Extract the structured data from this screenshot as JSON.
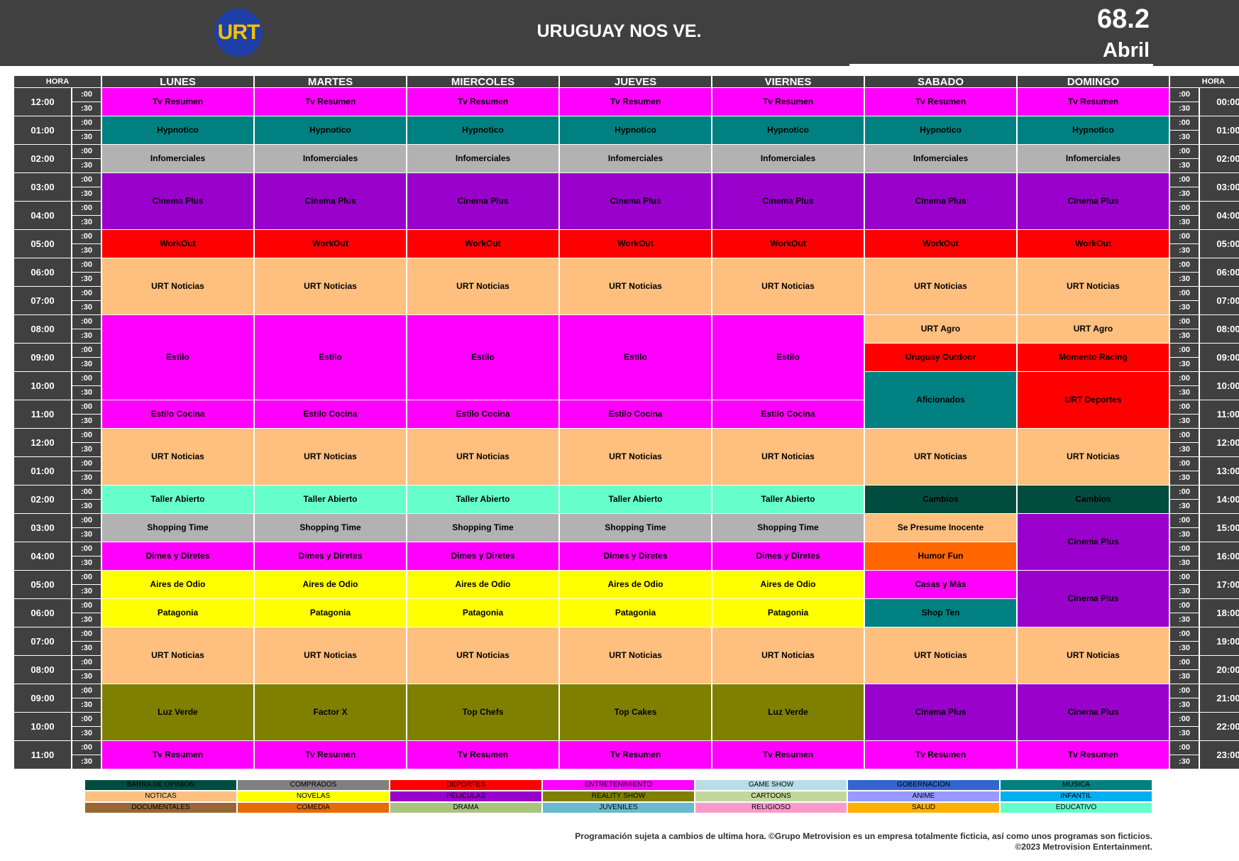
{
  "header": {
    "logo_text": "URT",
    "title": "URUGUAY NOS VE.",
    "channel": "68.2",
    "month": "Abril"
  },
  "colors": {
    "ent": "#ff00ff",
    "mus": "#008080",
    "comp": "#b2b2b2",
    "pel": "#9900cc",
    "dep": "#ff0000",
    "not": "#ffbf7f",
    "edu": "#66ffcc",
    "bar": "#004d40",
    "nov": "#ffff00",
    "real": "#808000",
    "com": "#ff6600"
  },
  "schedule": {
    "hora_label": "HORA",
    "days": [
      "LUNES",
      "MARTES",
      "MIERCOLES",
      "JUEVES",
      "VIERNES",
      "SABADO",
      "DOMINGO"
    ],
    "left_hours": [
      "12:00",
      "01:00",
      "02:00",
      "03:00",
      "04:00",
      "05:00",
      "06:00",
      "07:00",
      "08:00",
      "09:00",
      "10:00",
      "11:00",
      "12:00",
      "01:00",
      "02:00",
      "03:00",
      "04:00",
      "05:00",
      "06:00",
      "07:00",
      "08:00",
      "09:00",
      "10:00",
      "11:00"
    ],
    "right_hours": [
      "00:00",
      "01:00",
      "02:00",
      "03:00",
      "04:00",
      "05:00",
      "06:00",
      "07:00",
      "08:00",
      "09:00",
      "10:00",
      "11:00",
      "12:00",
      "13:00",
      "14:00",
      "15:00",
      "16:00",
      "17:00",
      "18:00",
      "19:00",
      "20:00",
      "21:00",
      "22:00",
      "23:00"
    ],
    "half_labels": [
      ":00",
      ":30"
    ],
    "columns": [
      [
        [
          "Tv Resumen",
          2,
          "ent"
        ],
        [
          "Hypnotico",
          2,
          "mus"
        ],
        [
          "Infomerciales",
          2,
          "comp"
        ],
        [
          "Cinema Plus",
          4,
          "pel"
        ],
        [
          "WorkOut",
          2,
          "dep"
        ],
        [
          "URT Noticias",
          4,
          "not"
        ],
        [
          "Estilo",
          6,
          "ent"
        ],
        [
          "Estilo Cocina",
          2,
          "ent"
        ],
        [
          "URT Noticias",
          4,
          "not"
        ],
        [
          "Taller Abierto",
          2,
          "edu"
        ],
        [
          "Shopping Time",
          2,
          "comp"
        ],
        [
          "Dimes y Diretes",
          2,
          "ent"
        ],
        [
          "Aires de Odio",
          2,
          "nov"
        ],
        [
          "Patagonia",
          2,
          "nov"
        ],
        [
          "URT Noticias",
          4,
          "not"
        ],
        [
          "Luz Verde",
          4,
          "real"
        ],
        [
          "Tv Resumen",
          2,
          "ent"
        ]
      ],
      [
        [
          "Tv Resumen",
          2,
          "ent"
        ],
        [
          "Hypnotico",
          2,
          "mus"
        ],
        [
          "Infomerciales",
          2,
          "comp"
        ],
        [
          "Cinema Plus",
          4,
          "pel"
        ],
        [
          "WorkOut",
          2,
          "dep"
        ],
        [
          "URT Noticias",
          4,
          "not"
        ],
        [
          "Estilo",
          6,
          "ent"
        ],
        [
          "Estilo Cocina",
          2,
          "ent"
        ],
        [
          "URT Noticias",
          4,
          "not"
        ],
        [
          "Taller Abierto",
          2,
          "edu"
        ],
        [
          "Shopping Time",
          2,
          "comp"
        ],
        [
          "Dimes y Diretes",
          2,
          "ent"
        ],
        [
          "Aires de Odio",
          2,
          "nov"
        ],
        [
          "Patagonia",
          2,
          "nov"
        ],
        [
          "URT Noticias",
          4,
          "not"
        ],
        [
          "Factor X",
          4,
          "real"
        ],
        [
          "Tv Resumen",
          2,
          "ent"
        ]
      ],
      [
        [
          "Tv Resumen",
          2,
          "ent"
        ],
        [
          "Hypnotico",
          2,
          "mus"
        ],
        [
          "Infomerciales",
          2,
          "comp"
        ],
        [
          "Cinema Plus",
          4,
          "pel"
        ],
        [
          "WorkOut",
          2,
          "dep"
        ],
        [
          "URT Noticias",
          4,
          "not"
        ],
        [
          "Estilo",
          6,
          "ent"
        ],
        [
          "Estilo Cocina",
          2,
          "ent"
        ],
        [
          "URT Noticias",
          4,
          "not"
        ],
        [
          "Taller Abierto",
          2,
          "edu"
        ],
        [
          "Shopping Time",
          2,
          "comp"
        ],
        [
          "Dimes y Diretes",
          2,
          "ent"
        ],
        [
          "Aires de Odio",
          2,
          "nov"
        ],
        [
          "Patagonia",
          2,
          "nov"
        ],
        [
          "URT Noticias",
          4,
          "not"
        ],
        [
          "Top Chefs",
          4,
          "real"
        ],
        [
          "Tv Resumen",
          2,
          "ent"
        ]
      ],
      [
        [
          "Tv Resumen",
          2,
          "ent"
        ],
        [
          "Hypnotico",
          2,
          "mus"
        ],
        [
          "Infomerciales",
          2,
          "comp"
        ],
        [
          "Cinema Plus",
          4,
          "pel"
        ],
        [
          "WorkOut",
          2,
          "dep"
        ],
        [
          "URT Noticias",
          4,
          "not"
        ],
        [
          "Estilo",
          6,
          "ent"
        ],
        [
          "Estilo Cocina",
          2,
          "ent"
        ],
        [
          "URT Noticias",
          4,
          "not"
        ],
        [
          "Taller Abierto",
          2,
          "edu"
        ],
        [
          "Shopping Time",
          2,
          "comp"
        ],
        [
          "Dimes y Diretes",
          2,
          "ent"
        ],
        [
          "Aires de Odio",
          2,
          "nov"
        ],
        [
          "Patagonia",
          2,
          "nov"
        ],
        [
          "URT Noticias",
          4,
          "not"
        ],
        [
          "Top Cakes",
          4,
          "real"
        ],
        [
          "Tv Resumen",
          2,
          "ent"
        ]
      ],
      [
        [
          "Tv Resumen",
          2,
          "ent"
        ],
        [
          "Hypnotico",
          2,
          "mus"
        ],
        [
          "Infomerciales",
          2,
          "comp"
        ],
        [
          "Cinema Plus",
          4,
          "pel"
        ],
        [
          "WorkOut",
          2,
          "dep"
        ],
        [
          "URT Noticias",
          4,
          "not"
        ],
        [
          "Estilo",
          6,
          "ent"
        ],
        [
          "Estilo Cocina",
          2,
          "ent"
        ],
        [
          "URT Noticias",
          4,
          "not"
        ],
        [
          "Taller Abierto",
          2,
          "edu"
        ],
        [
          "Shopping Time",
          2,
          "comp"
        ],
        [
          "Dimes y Diretes",
          2,
          "ent"
        ],
        [
          "Aires de Odio",
          2,
          "nov"
        ],
        [
          "Patagonia",
          2,
          "nov"
        ],
        [
          "URT Noticias",
          4,
          "not"
        ],
        [
          "Luz Verde",
          4,
          "real"
        ],
        [
          "Tv Resumen",
          2,
          "ent"
        ]
      ],
      [
        [
          "Tv Resumen",
          2,
          "ent"
        ],
        [
          "Hypnotico",
          2,
          "mus"
        ],
        [
          "Infomerciales",
          2,
          "comp"
        ],
        [
          "Cinema Plus",
          4,
          "pel"
        ],
        [
          "WorkOut",
          2,
          "dep"
        ],
        [
          "URT Noticias",
          4,
          "not"
        ],
        [
          "URT Agro",
          2,
          "not"
        ],
        [
          "Uruguay Outdoor",
          2,
          "dep"
        ],
        [
          "Aficionados",
          4,
          "mus"
        ],
        [
          "URT Noticias",
          4,
          "not"
        ],
        [
          "Cambios",
          2,
          "bar"
        ],
        [
          "Se Presume Inocente",
          2,
          "not"
        ],
        [
          "Humor Fun",
          2,
          "com"
        ],
        [
          "Casas y Más",
          2,
          "ent"
        ],
        [
          "Shop Ten",
          2,
          "mus"
        ],
        [
          "URT Noticias",
          4,
          "not"
        ],
        [
          "Cinema Plus",
          4,
          "pel"
        ],
        [
          "Tv Resumen",
          2,
          "ent"
        ]
      ],
      [
        [
          "Tv Resumen",
          2,
          "ent"
        ],
        [
          "Hypnotico",
          2,
          "mus"
        ],
        [
          "Infomerciales",
          2,
          "comp"
        ],
        [
          "Cinema Plus",
          4,
          "pel"
        ],
        [
          "WorkOut",
          2,
          "dep"
        ],
        [
          "URT Noticias",
          4,
          "not"
        ],
        [
          "URT Agro",
          2,
          "not"
        ],
        [
          "Momento Racing",
          2,
          "dep"
        ],
        [
          "URT Deportes",
          4,
          "dep"
        ],
        [
          "URT Noticias",
          4,
          "not"
        ],
        [
          "Cambios",
          2,
          "bar"
        ],
        [
          "Cinema Plus",
          4,
          "pel"
        ],
        [
          "Cinema Plus",
          4,
          "pel"
        ],
        [
          "URT Noticias",
          4,
          "not"
        ],
        [
          "Cinema Plus",
          4,
          "pel"
        ],
        [
          "Tv Resumen",
          2,
          "ent"
        ]
      ]
    ]
  },
  "legend": [
    [
      "BARRA DE OPINION",
      "#004d40"
    ],
    [
      "COMPRADOS",
      "#7f7f7f"
    ],
    [
      "DEPORTES",
      "#ff0000"
    ],
    [
      "ENTRETENIMIENTO",
      "#ff00ff"
    ],
    [
      "GAME SHOW",
      "#b7dde8"
    ],
    [
      "GOBERNACION",
      "#3366cc"
    ],
    [
      "MUSICA",
      "#008080"
    ],
    [
      "NOTICAS",
      "#ffbf7f"
    ],
    [
      "NOVELAS",
      "#ffff00"
    ],
    [
      "PELICULAS",
      "#9900cc"
    ],
    [
      "REALITY SHOW",
      "#808000"
    ],
    [
      "CARTOONS",
      "#c4d79b"
    ],
    [
      "ANIME",
      "#9999ff"
    ],
    [
      "INFANTIL",
      "#00b0f0"
    ],
    [
      "DOCUMENTALES",
      "#996633"
    ],
    [
      "COMEDIA",
      "#e26b0a"
    ],
    [
      "DRAMA",
      "#a9c47f"
    ],
    [
      "JUVENILES",
      "#66bccc"
    ],
    [
      "RELIGIOSO",
      "#ff99cc"
    ],
    [
      "SALUD",
      "#ffb000"
    ],
    [
      "EDUCATIVO",
      "#66ffcc"
    ]
  ],
  "footer": {
    "line1": "Programación sujeta a cambios de ultima hora. ©Grupo Metrovision es un empresa totalmente ficticia, así como unos programas son ficticios.",
    "line2": "©2023 Metrovision Entertainment."
  }
}
